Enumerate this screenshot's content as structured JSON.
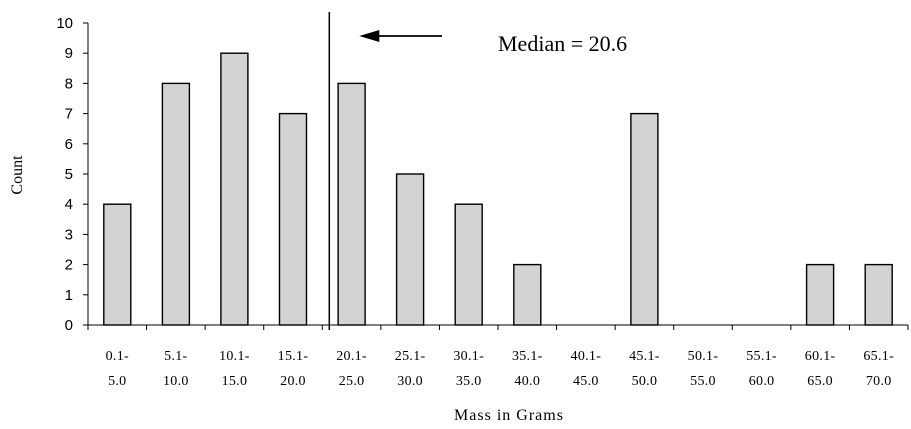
{
  "chart_data": {
    "type": "bar",
    "categories": [
      [
        "0.1-",
        "5.0"
      ],
      [
        "5.1-",
        "10.0"
      ],
      [
        "10.1-",
        "15.0"
      ],
      [
        "15.1-",
        "20.0"
      ],
      [
        "20.1-",
        "25.0"
      ],
      [
        "25.1-",
        "30.0"
      ],
      [
        "30.1-",
        "35.0"
      ],
      [
        "35.1-",
        "40.0"
      ],
      [
        "40.1-",
        "45.0"
      ],
      [
        "45.1-",
        "50.0"
      ],
      [
        "50.1-",
        "55.0"
      ],
      [
        "55.1-",
        "60.0"
      ],
      [
        "60.1-",
        "65.0"
      ],
      [
        "65.1-",
        "70.0"
      ]
    ],
    "values": [
      4,
      8,
      9,
      7,
      8,
      5,
      4,
      2,
      0,
      7,
      0,
      0,
      2,
      2
    ],
    "title": "",
    "xlabel": "Mass in Grams",
    "ylabel": "Count",
    "ylim": [
      0,
      10
    ],
    "yticks": [
      "0",
      "1",
      "2",
      "3",
      "4",
      "5",
      "6",
      "7",
      "8",
      "9",
      "10"
    ],
    "grid": false,
    "legend": "none",
    "annotation": {
      "text": "Median = 20.6",
      "value": 20.6
    },
    "colors": {
      "bar_fill": "#d3d3d3",
      "bar_edge": "#000000"
    }
  }
}
